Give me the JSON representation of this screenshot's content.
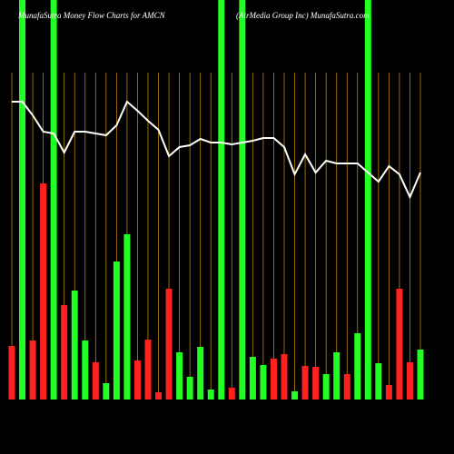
{
  "chart_data": {
    "type": "bar",
    "title": "MunafaSutra  Money Flow  Charts for AMCN",
    "subtitle": "(AirMedia  Group Inc) MunafaSutra.com",
    "ylim": [
      0,
      440
    ],
    "values": [
      59,
      440,
      65,
      238,
      440,
      104,
      120,
      65,
      41,
      18,
      152,
      182,
      43,
      66,
      8,
      122,
      52,
      25,
      58,
      11,
      440,
      13,
      440,
      47,
      38,
      45,
      50,
      9,
      37,
      36,
      28,
      52,
      28,
      73,
      440,
      40,
      16,
      122,
      41,
      55
    ],
    "colors": [
      "#ff2020",
      "#22ff22",
      "#ff2020",
      "#ff2020",
      "#22ff22",
      "#ff2020",
      "#22ff22",
      "#22ff22",
      "#ff2020",
      "#22ff22",
      "#22ff22",
      "#22ff22",
      "#ff2020",
      "#ff2020",
      "#ff2020",
      "#ff2020",
      "#22ff22",
      "#22ff22",
      "#22ff22",
      "#22ff22",
      "#22ff22",
      "#ff2020",
      "#22ff22",
      "#22ff22",
      "#22ff22",
      "#ff2020",
      "#ff2020",
      "#22ff22",
      "#ff2020",
      "#ff2020",
      "#22ff22",
      "#22ff22",
      "#ff2020",
      "#22ff22",
      "#22ff22",
      "#22ff22",
      "#ff2020",
      "#ff2020",
      "#ff2020",
      "#22ff22"
    ],
    "line_values": [
      328,
      328,
      313,
      295,
      293,
      272,
      295,
      295,
      293,
      291,
      302,
      328,
      318,
      307,
      297,
      268,
      278,
      280,
      287,
      283,
      283,
      281,
      283,
      285,
      288,
      288,
      278,
      248,
      270,
      250,
      263,
      260,
      260,
      260,
      250,
      240,
      257,
      248,
      223,
      250
    ],
    "line_color": "#ffffff",
    "grid_color": "#b8860b"
  }
}
